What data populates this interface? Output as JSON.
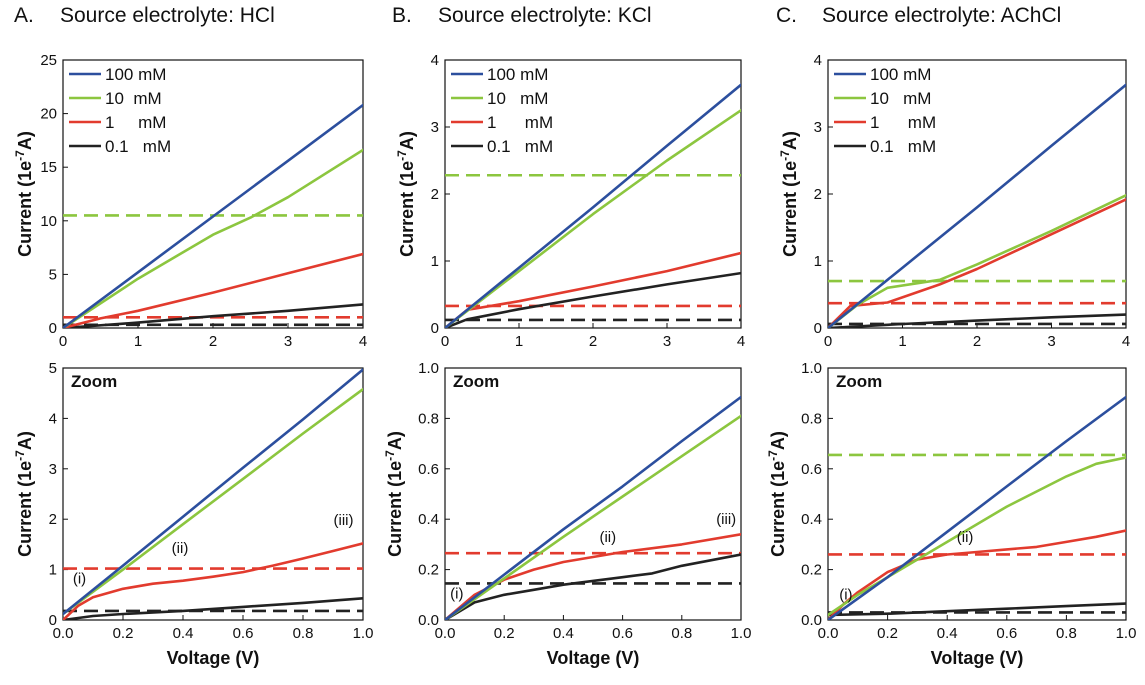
{
  "panels": [
    {
      "letter": "A.",
      "title": "Source electrolyte: HCl"
    },
    {
      "letter": "B.",
      "title": "Source electrolyte: KCl"
    },
    {
      "letter": "C.",
      "title": "Source electrolyte: AChCl"
    }
  ],
  "colors": {
    "100 mM": "#2c4f9e",
    "10 mM": "#8cc63f",
    "1 mM": "#e23b2e",
    "0.1 mM": "#222222"
  },
  "chart_data": [
    {
      "id": "A-full",
      "type": "line",
      "xlabel": "",
      "ylabel": "Current (1e-7A)",
      "xlim": [
        0,
        4
      ],
      "ylim": [
        0,
        25
      ],
      "xticks": [
        "0",
        "1",
        "2",
        "3",
        "4"
      ],
      "yticks": [
        "0",
        "5",
        "10",
        "15",
        "20",
        "25"
      ],
      "legend": [
        "100 mM",
        "10  mM",
        "1     mM",
        "0.1   mM"
      ],
      "series": [
        {
          "name": "100 mM",
          "color": "#2c4f9e",
          "x": [
            0,
            1,
            2,
            3,
            4
          ],
          "values": [
            0,
            5.2,
            10.4,
            15.6,
            20.8
          ]
        },
        {
          "name": "10  mM",
          "color": "#8cc63f",
          "x": [
            0,
            1,
            2,
            2.5,
            3,
            4
          ],
          "values": [
            0,
            4.6,
            8.7,
            10.3,
            12.2,
            16.6
          ]
        },
        {
          "name": "1     mM",
          "color": "#e23b2e",
          "x": [
            0,
            0.5,
            1,
            2,
            3,
            4
          ],
          "values": [
            0,
            0.9,
            1.6,
            3.3,
            5.1,
            6.9
          ]
        },
        {
          "name": "0.1   mM",
          "color": "#222222",
          "x": [
            0,
            1,
            2,
            3,
            4
          ],
          "values": [
            0,
            0.5,
            1.1,
            1.6,
            2.2
          ]
        }
      ],
      "hlines": [
        {
          "y": 10.5,
          "color": "#8cc63f"
        },
        {
          "y": 1.0,
          "color": "#e23b2e"
        },
        {
          "y": 0.3,
          "color": "#222222"
        }
      ],
      "annotations": []
    },
    {
      "id": "B-full",
      "type": "line",
      "xlabel": "",
      "ylabel": "Current (1e-7A)",
      "xlim": [
        0,
        4
      ],
      "ylim": [
        0,
        4
      ],
      "xticks": [
        "0",
        "1",
        "2",
        "3",
        "4"
      ],
      "yticks": [
        "0",
        "1",
        "2",
        "3",
        "4"
      ],
      "legend": [
        "100 mM",
        "10   mM",
        "1      mM",
        "0.1   mM"
      ],
      "series": [
        {
          "name": "100 mM",
          "color": "#2c4f9e",
          "x": [
            0,
            1,
            2,
            3,
            4
          ],
          "values": [
            0,
            0.9,
            1.8,
            2.72,
            3.63
          ]
        },
        {
          "name": "10   mM",
          "color": "#8cc63f",
          "x": [
            0,
            1,
            2,
            3,
            4
          ],
          "values": [
            0,
            0.85,
            1.7,
            2.5,
            3.25
          ]
        },
        {
          "name": "1      mM",
          "color": "#e23b2e",
          "x": [
            0,
            0.3,
            1,
            2,
            3,
            4
          ],
          "values": [
            0,
            0.27,
            0.4,
            0.62,
            0.85,
            1.12
          ]
        },
        {
          "name": "0.1   mM",
          "color": "#222222",
          "x": [
            0,
            0.3,
            1,
            2,
            3,
            4
          ],
          "values": [
            0,
            0.13,
            0.28,
            0.47,
            0.65,
            0.82
          ]
        }
      ],
      "hlines": [
        {
          "y": 2.28,
          "color": "#8cc63f"
        },
        {
          "y": 0.33,
          "color": "#e23b2e"
        },
        {
          "y": 0.12,
          "color": "#222222"
        }
      ],
      "annotations": []
    },
    {
      "id": "C-full",
      "type": "line",
      "xlabel": "",
      "ylabel": "Current (1e-7A)",
      "xlim": [
        0,
        4
      ],
      "ylim": [
        0,
        4
      ],
      "xticks": [
        "0",
        "1",
        "2",
        "3",
        "4"
      ],
      "yticks": [
        "0",
        "1",
        "2",
        "3",
        "4"
      ],
      "legend": [
        "100 mM",
        "10   mM",
        "1      mM",
        "0.1   mM"
      ],
      "series": [
        {
          "name": "100 mM",
          "color": "#2c4f9e",
          "x": [
            0,
            1,
            2,
            3,
            4
          ],
          "values": [
            0,
            0.9,
            1.8,
            2.72,
            3.63
          ]
        },
        {
          "name": "10   mM",
          "color": "#8cc63f",
          "x": [
            0,
            0.4,
            0.8,
            1.5,
            2,
            3,
            4
          ],
          "values": [
            0,
            0.35,
            0.6,
            0.72,
            0.95,
            1.45,
            1.98
          ]
        },
        {
          "name": "1      mM",
          "color": "#e23b2e",
          "x": [
            0,
            0.3,
            0.8,
            1.5,
            2,
            3,
            4
          ],
          "values": [
            0,
            0.33,
            0.38,
            0.65,
            0.88,
            1.4,
            1.92
          ]
        },
        {
          "name": "0.1   mM",
          "color": "#222222",
          "x": [
            0,
            1,
            2,
            3,
            4
          ],
          "values": [
            0,
            0.06,
            0.11,
            0.16,
            0.2
          ]
        }
      ],
      "hlines": [
        {
          "y": 0.7,
          "color": "#8cc63f"
        },
        {
          "y": 0.37,
          "color": "#e23b2e"
        },
        {
          "y": 0.06,
          "color": "#222222"
        }
      ],
      "annotations": []
    },
    {
      "id": "A-zoom",
      "type": "line",
      "xlabel": "Voltage (V)",
      "ylabel": "Current (1e-7A)",
      "zoom_label": "Zoom",
      "xlim": [
        0,
        1
      ],
      "ylim": [
        0,
        5
      ],
      "xticks": [
        "0.0",
        "0.2",
        "0.4",
        "0.6",
        "0.8",
        "1.0"
      ],
      "yticks": [
        "0",
        "1",
        "2",
        "3",
        "4",
        "5"
      ],
      "legend": [],
      "series": [
        {
          "name": "100 mM",
          "color": "#2c4f9e",
          "x": [
            0,
            0.2,
            0.4,
            0.6,
            0.8,
            1.0
          ],
          "values": [
            0.12,
            1.08,
            2.05,
            3.02,
            3.98,
            4.97
          ]
        },
        {
          "name": "10 mM",
          "color": "#8cc63f",
          "x": [
            0,
            0.2,
            0.4,
            0.6,
            0.8,
            1.0
          ],
          "values": [
            0.12,
            1.0,
            1.9,
            2.8,
            3.7,
            4.58
          ]
        },
        {
          "name": "1 mM",
          "color": "#e23b2e",
          "x": [
            0,
            0.05,
            0.1,
            0.2,
            0.3,
            0.4,
            0.5,
            0.6,
            0.7,
            0.8,
            0.9,
            1.0
          ],
          "values": [
            0,
            0.28,
            0.45,
            0.62,
            0.72,
            0.78,
            0.86,
            0.95,
            1.08,
            1.22,
            1.37,
            1.52
          ]
        },
        {
          "name": "0.1 mM",
          "color": "#222222",
          "x": [
            0,
            0.1,
            0.2,
            0.4,
            0.6,
            0.8,
            1.0
          ],
          "values": [
            0,
            0.08,
            0.12,
            0.18,
            0.26,
            0.34,
            0.43
          ]
        }
      ],
      "hlines": [
        {
          "y": 1.02,
          "color": "#e23b2e"
        },
        {
          "y": 0.18,
          "color": "#222222"
        }
      ],
      "annotations": [
        {
          "text": "(i)",
          "x": 0.055,
          "y": 0.72
        },
        {
          "text": "(ii)",
          "x": 0.39,
          "y": 1.33
        },
        {
          "text": "(iii)",
          "x": 0.935,
          "y": 1.88
        }
      ]
    },
    {
      "id": "B-zoom",
      "type": "line",
      "xlabel": "Voltage (V)",
      "ylabel": "Current (1e-7A)",
      "zoom_label": "Zoom",
      "xlim": [
        0,
        1
      ],
      "ylim": [
        0,
        1
      ],
      "xticks": [
        "0.0",
        "0.2",
        "0.4",
        "0.6",
        "0.8",
        "1.0"
      ],
      "yticks": [
        "0.0",
        "0.2",
        "0.4",
        "0.6",
        "0.8",
        "1.0"
      ],
      "legend": [],
      "series": [
        {
          "name": "100 mM",
          "color": "#2c4f9e",
          "x": [
            0,
            0.2,
            0.4,
            0.6,
            0.8,
            1.0
          ],
          "values": [
            0,
            0.18,
            0.36,
            0.53,
            0.71,
            0.885
          ]
        },
        {
          "name": "10 mM",
          "color": "#8cc63f",
          "x": [
            0,
            0.2,
            0.4,
            0.6,
            0.8,
            1.0
          ],
          "values": [
            0,
            0.165,
            0.33,
            0.49,
            0.65,
            0.81
          ]
        },
        {
          "name": "1 mM",
          "color": "#e23b2e",
          "x": [
            0,
            0.1,
            0.2,
            0.3,
            0.4,
            0.5,
            0.6,
            0.8,
            1.0
          ],
          "values": [
            0,
            0.1,
            0.16,
            0.2,
            0.23,
            0.25,
            0.27,
            0.3,
            0.34
          ]
        },
        {
          "name": "0.1 mM",
          "color": "#222222",
          "x": [
            0,
            0.1,
            0.2,
            0.3,
            0.4,
            0.5,
            0.6,
            0.7,
            0.8,
            1.0
          ],
          "values": [
            0,
            0.07,
            0.1,
            0.12,
            0.14,
            0.155,
            0.17,
            0.185,
            0.215,
            0.26
          ]
        }
      ],
      "hlines": [
        {
          "y": 0.265,
          "color": "#e23b2e"
        },
        {
          "y": 0.145,
          "color": "#222222"
        }
      ],
      "annotations": [
        {
          "text": "(i)",
          "x": 0.04,
          "y": 0.085
        },
        {
          "text": "(ii)",
          "x": 0.55,
          "y": 0.31
        },
        {
          "text": "(iii)",
          "x": 0.95,
          "y": 0.38
        }
      ]
    },
    {
      "id": "C-zoom",
      "type": "line",
      "xlabel": "Voltage (V)",
      "ylabel": "Current (1e-7A)",
      "zoom_label": "Zoom",
      "xlim": [
        0,
        1
      ],
      "ylim": [
        0,
        1
      ],
      "xticks": [
        "0.0",
        "0.2",
        "0.4",
        "0.6",
        "0.8",
        "1.0"
      ],
      "yticks": [
        "0.0",
        "0.2",
        "0.4",
        "0.6",
        "0.8",
        "1.0"
      ],
      "legend": [],
      "series": [
        {
          "name": "100 mM",
          "color": "#2c4f9e",
          "x": [
            0,
            0.2,
            0.4,
            0.6,
            0.8,
            1.0
          ],
          "values": [
            0,
            0.17,
            0.35,
            0.53,
            0.71,
            0.885
          ]
        },
        {
          "name": "10 mM",
          "color": "#8cc63f",
          "x": [
            0,
            0.1,
            0.2,
            0.3,
            0.4,
            0.5,
            0.6,
            0.7,
            0.8,
            0.9,
            1.0
          ],
          "values": [
            0.02,
            0.1,
            0.17,
            0.24,
            0.31,
            0.38,
            0.45,
            0.51,
            0.57,
            0.62,
            0.645
          ]
        },
        {
          "name": "1 mM",
          "color": "#e23b2e",
          "x": [
            0,
            0.05,
            0.1,
            0.15,
            0.2,
            0.3,
            0.4,
            0.5,
            0.6,
            0.7,
            0.8,
            0.9,
            1.0
          ],
          "values": [
            0,
            0.06,
            0.11,
            0.15,
            0.19,
            0.24,
            0.26,
            0.27,
            0.28,
            0.29,
            0.31,
            0.33,
            0.355
          ]
        },
        {
          "name": "0.1 mM",
          "color": "#222222",
          "x": [
            0,
            0.2,
            0.4,
            0.6,
            0.8,
            1.0
          ],
          "values": [
            0.02,
            0.025,
            0.035,
            0.045,
            0.055,
            0.065
          ]
        }
      ],
      "hlines": [
        {
          "y": 0.655,
          "color": "#8cc63f"
        },
        {
          "y": 0.26,
          "color": "#e23b2e"
        },
        {
          "y": 0.03,
          "color": "#222222"
        }
      ],
      "annotations": [
        {
          "text": "(i)",
          "x": 0.06,
          "y": 0.082
        },
        {
          "text": "(ii)",
          "x": 0.46,
          "y": 0.31
        }
      ]
    }
  ]
}
